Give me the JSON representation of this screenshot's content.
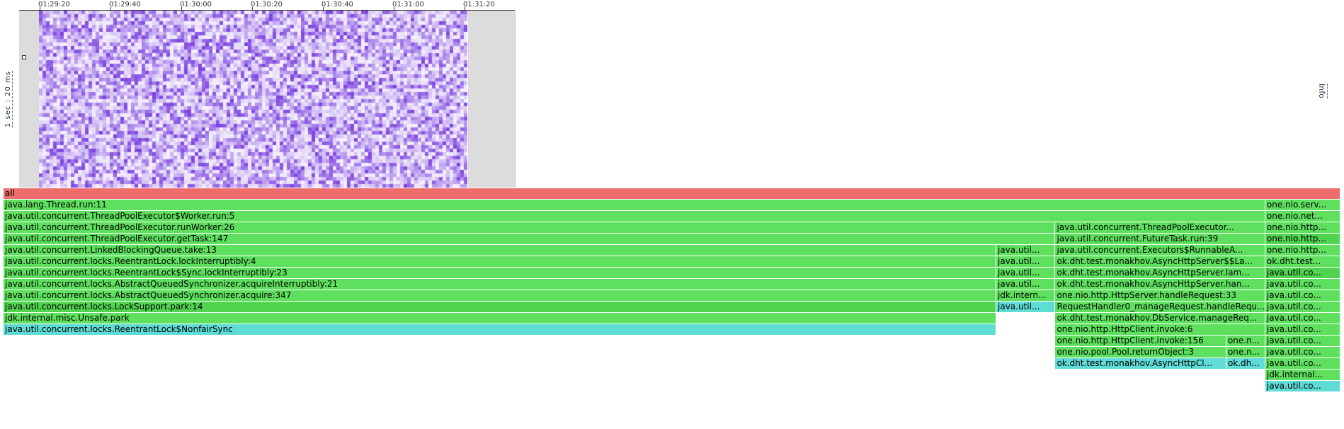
{
  "timeline": {
    "ticks": [
      "01:29:20",
      "01:29:40",
      "01:30:00",
      "01:30:20",
      "01:30:40",
      "01:31:00",
      "01:31:20"
    ],
    "y_scale": "1 sec : 20 ms",
    "info": "Info",
    "heat_color": "#7a3fe0"
  },
  "flame": [
    {
      "depth": 0,
      "x": 0,
      "w": 1,
      "label": "all",
      "c": "root"
    },
    {
      "depth": 1,
      "x": 0,
      "w": 0.9438,
      "label": "java.lang.Thread.run:11",
      "c": "g1"
    },
    {
      "depth": 1,
      "x": 0.9438,
      "w": 0.0562,
      "label": "one.nio.serv...",
      "c": "g1"
    },
    {
      "depth": 2,
      "x": 0,
      "w": 0.9438,
      "label": "java.util.concurrent.ThreadPoolExecutor$Worker.run:5",
      "c": "g1"
    },
    {
      "depth": 2,
      "x": 0.9438,
      "w": 0.0562,
      "label": "one.nio.net...",
      "c": "g1"
    },
    {
      "depth": 3,
      "x": 0,
      "w": 0.7868,
      "label": "java.util.concurrent.ThreadPoolExecutor.runWorker:26",
      "c": "g1"
    },
    {
      "depth": 3,
      "x": 0.7868,
      "w": 0.157,
      "label": "java.util.concurrent.ThreadPoolExecutor...",
      "c": "g1"
    },
    {
      "depth": 3,
      "x": 0.9438,
      "w": 0.0562,
      "label": "one.nio.http...",
      "c": "g1"
    },
    {
      "depth": 4,
      "x": 0,
      "w": 0.7868,
      "label": "java.util.concurrent.ThreadPoolExecutor.getTask:147",
      "c": "g1"
    },
    {
      "depth": 4,
      "x": 0.7868,
      "w": 0.157,
      "label": "java.util.concurrent.FutureTask.run:39",
      "c": "g1"
    },
    {
      "depth": 4,
      "x": 0.9438,
      "w": 0.0562,
      "label": "one.nio.http...",
      "c": "g2"
    },
    {
      "depth": 5,
      "x": 0,
      "w": 0.7426,
      "label": "java.util.concurrent.LinkedBlockingQueue.take:13",
      "c": "g1"
    },
    {
      "depth": 5,
      "x": 0.7426,
      "w": 0.0442,
      "label": "java.util...",
      "c": "g1"
    },
    {
      "depth": 5,
      "x": 0.7868,
      "w": 0.157,
      "label": "java.util.concurrent.Executors$RunnableA...",
      "c": "g1"
    },
    {
      "depth": 5,
      "x": 0.9438,
      "w": 0.0562,
      "label": "one.nio.http...",
      "c": "g1"
    },
    {
      "depth": 6,
      "x": 0,
      "w": 0.7426,
      "label": "java.util.concurrent.locks.ReentrantLock.lockInterruptibly:4",
      "c": "g1"
    },
    {
      "depth": 6,
      "x": 0.7426,
      "w": 0.0442,
      "label": "java.util...",
      "c": "g1"
    },
    {
      "depth": 6,
      "x": 0.7868,
      "w": 0.157,
      "label": "ok.dht.test.monakhov.AsyncHttpServer$$La...",
      "c": "g1"
    },
    {
      "depth": 6,
      "x": 0.9438,
      "w": 0.0562,
      "label": "ok.dht.test...",
      "c": "g1"
    },
    {
      "depth": 7,
      "x": 0,
      "w": 0.7426,
      "label": "java.util.concurrent.locks.ReentrantLock$Sync.lockInterruptibly:23",
      "c": "g1"
    },
    {
      "depth": 7,
      "x": 0.7426,
      "w": 0.0442,
      "label": "java.util...",
      "c": "g1"
    },
    {
      "depth": 7,
      "x": 0.7868,
      "w": 0.157,
      "label": "ok.dht.test.monakhov.AsyncHttpServer.lam...",
      "c": "g1"
    },
    {
      "depth": 7,
      "x": 0.9438,
      "w": 0.0562,
      "label": "java.util.co...",
      "c": "g2"
    },
    {
      "depth": 8,
      "x": 0,
      "w": 0.7426,
      "label": "java.util.concurrent.locks.AbstractQueuedSynchronizer.acquireInterruptibly:21",
      "c": "g1"
    },
    {
      "depth": 8,
      "x": 0.7426,
      "w": 0.0442,
      "label": "java.util...",
      "c": "g1"
    },
    {
      "depth": 8,
      "x": 0.7868,
      "w": 0.157,
      "label": "ok.dht.test.monakhov.AsyncHttpServer.han...",
      "c": "g1"
    },
    {
      "depth": 8,
      "x": 0.9438,
      "w": 0.0562,
      "label": "java.util.co...",
      "c": "g1"
    },
    {
      "depth": 9,
      "x": 0,
      "w": 0.7426,
      "label": "java.util.concurrent.locks.AbstractQueuedSynchronizer.acquire:347",
      "c": "g1"
    },
    {
      "depth": 9,
      "x": 0.7426,
      "w": 0.0442,
      "label": "jdk.intern...",
      "c": "g1"
    },
    {
      "depth": 9,
      "x": 0.7868,
      "w": 0.157,
      "label": "one.nio.http.HttpServer.handleRequest:33",
      "c": "g1"
    },
    {
      "depth": 9,
      "x": 0.9438,
      "w": 0.0562,
      "label": "java.util.co...",
      "c": "g1"
    },
    {
      "depth": 10,
      "x": 0,
      "w": 0.7426,
      "label": "java.util.concurrent.locks.LockSupport.park:14",
      "c": "g2"
    },
    {
      "depth": 10,
      "x": 0.7426,
      "w": 0.0442,
      "label": "java.util...",
      "c": "cyan"
    },
    {
      "depth": 10,
      "x": 0.7868,
      "w": 0.157,
      "label": "RequestHandler0_manageRequest.handleRequ...",
      "c": "g1"
    },
    {
      "depth": 10,
      "x": 0.9438,
      "w": 0.0562,
      "label": "java.util.co...",
      "c": "g1"
    },
    {
      "depth": 11,
      "x": 0,
      "w": 0.7426,
      "label": "jdk.internal.misc.Unsafe.park",
      "c": "g1"
    },
    {
      "depth": 11,
      "x": 0.7868,
      "w": 0.157,
      "label": "ok.dht.test.monakhov.DbService.manageReq...",
      "c": "g1"
    },
    {
      "depth": 11,
      "x": 0.9438,
      "w": 0.0562,
      "label": "java.util.co...",
      "c": "g1"
    },
    {
      "depth": 12,
      "x": 0,
      "w": 0.7426,
      "label": "java.util.concurrent.locks.ReentrantLock$NonfairSync",
      "c": "cyan"
    },
    {
      "depth": 12,
      "x": 0.7868,
      "w": 0.157,
      "label": "one.nio.http.HttpClient.invoke:6",
      "c": "g1"
    },
    {
      "depth": 12,
      "x": 0.9438,
      "w": 0.0562,
      "label": "java.util.co...",
      "c": "g1"
    },
    {
      "depth": 13,
      "x": 0.7868,
      "w": 0.1279,
      "label": "one.nio.http.HttpClient.invoke:156",
      "c": "g1"
    },
    {
      "depth": 13,
      "x": 0.9147,
      "w": 0.0291,
      "label": "one.n...",
      "c": "g1"
    },
    {
      "depth": 13,
      "x": 0.9438,
      "w": 0.0562,
      "label": "java.util.co...",
      "c": "g1"
    },
    {
      "depth": 14,
      "x": 0.7868,
      "w": 0.1279,
      "label": "one.nio.pool.Pool.returnObject:3",
      "c": "g1"
    },
    {
      "depth": 14,
      "x": 0.9147,
      "w": 0.0291,
      "label": "one.n...",
      "c": "g1"
    },
    {
      "depth": 14,
      "x": 0.9438,
      "w": 0.0562,
      "label": "java.util.co...",
      "c": "g1"
    },
    {
      "depth": 15,
      "x": 0.7868,
      "w": 0.1279,
      "label": "ok.dht.test.monakhov.AsyncHttpCl...",
      "c": "cyan"
    },
    {
      "depth": 15,
      "x": 0.9147,
      "w": 0.0291,
      "label": "ok.dh...",
      "c": "cyan"
    },
    {
      "depth": 15,
      "x": 0.9438,
      "w": 0.0562,
      "label": "java.util.co...",
      "c": "g1"
    },
    {
      "depth": 16,
      "x": 0.9438,
      "w": 0.0562,
      "label": "jdk.internal...",
      "c": "g1"
    },
    {
      "depth": 17,
      "x": 0.9438,
      "w": 0.0562,
      "label": "java.util.co...",
      "c": "cyan"
    }
  ]
}
